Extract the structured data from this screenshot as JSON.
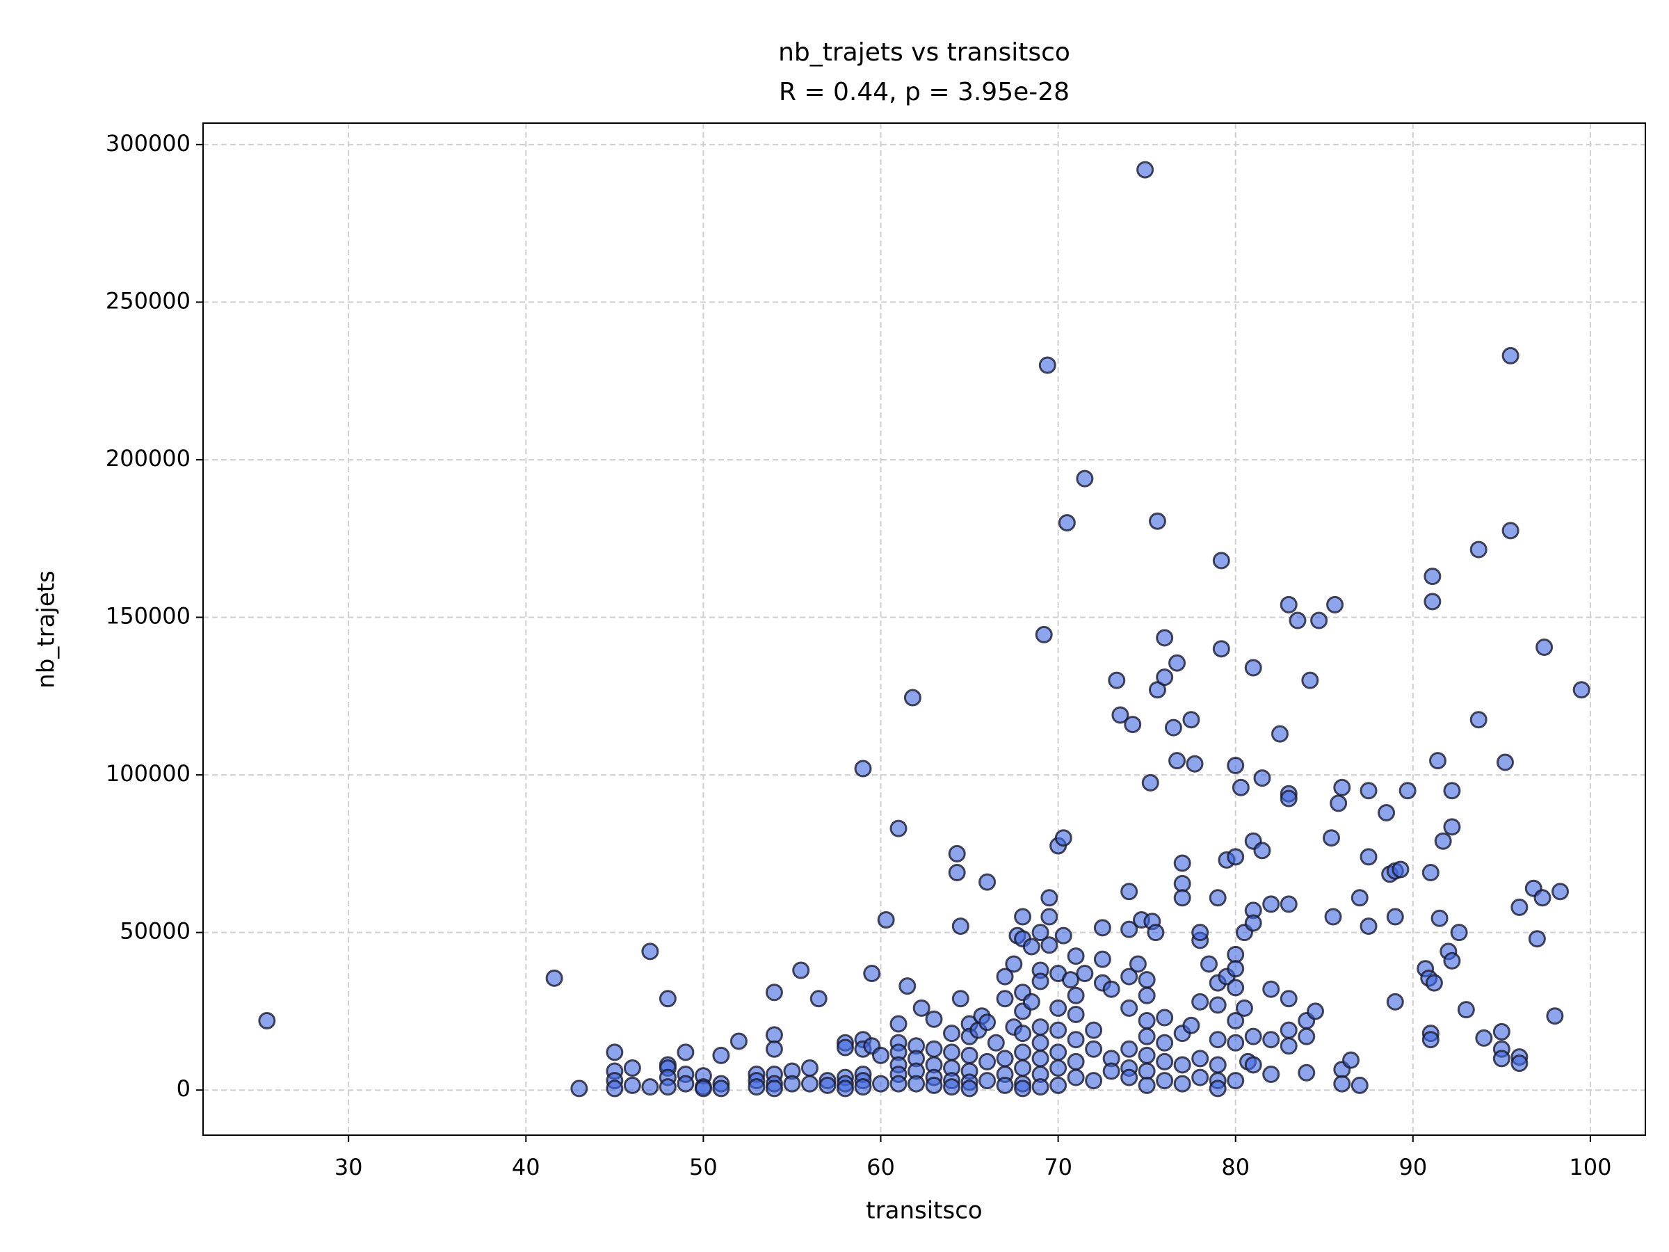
{
  "chart_data": {
    "type": "scatter",
    "title": "nb_trajets vs transitsco",
    "subtitle": "R = 0.44, p = 3.95e-28",
    "x_label": "transitsco",
    "y_label": "nb_trajets",
    "color": "#4169e1",
    "edge_color": "#1a1a2e",
    "grid": true,
    "xlim": [
      21.8,
      103.1
    ],
    "ylim": [
      -14300,
      306800
    ],
    "xticks": [
      30,
      40,
      50,
      60,
      70,
      80,
      90,
      100
    ],
    "yticks": [
      0,
      50000,
      100000,
      150000,
      200000,
      250000,
      300000
    ],
    "x": [
      25.4,
      41.6,
      43,
      47,
      48,
      45,
      45,
      45,
      45,
      46,
      46,
      47,
      48,
      48,
      48,
      48,
      49,
      49,
      49,
      50,
      50,
      50,
      51,
      51,
      51,
      52,
      53,
      53,
      53,
      54,
      54,
      54,
      54,
      54,
      54,
      55,
      55,
      55.5,
      56,
      56,
      56.5,
      57,
      57,
      58,
      58,
      58,
      58,
      58,
      59,
      59,
      59,
      59,
      59,
      59,
      59.5,
      59.5,
      60,
      60,
      60.3,
      61,
      61,
      61,
      61,
      61,
      61,
      61,
      61.5,
      61.8,
      62,
      62,
      62,
      62,
      62.3,
      63,
      63,
      63,
      63,
      63,
      64,
      64,
      64,
      64,
      64,
      64.3,
      64.3,
      64.5,
      64.5,
      65,
      65,
      65,
      65,
      65,
      65,
      65.5,
      65.7,
      66,
      66,
      66,
      66,
      66.5,
      67,
      67,
      67,
      67,
      67,
      67.5,
      67.5,
      67.7,
      68,
      68,
      68,
      68,
      68,
      68,
      68,
      68,
      68,
      68.5,
      68.5,
      69,
      69,
      69,
      69,
      69,
      69,
      69,
      69,
      69.2,
      69.4,
      69.5,
      69.5,
      69.5,
      70,
      70,
      70,
      70,
      70,
      70,
      70,
      70.3,
      70.3,
      70.5,
      70.7,
      71,
      71,
      71,
      71,
      71,
      71,
      71.5,
      71.5,
      72,
      72,
      72,
      72.5,
      72.5,
      72.5,
      73,
      73,
      73,
      73.3,
      73.5,
      74,
      74,
      74,
      74,
      74,
      74,
      74,
      74.2,
      74.5,
      74.7,
      74.9,
      75,
      75,
      75,
      75,
      75,
      75,
      75,
      75.2,
      75.3,
      75.5,
      75.6,
      75.6,
      76,
      76,
      76,
      76,
      76,
      76,
      76.5,
      76.7,
      76.7,
      77,
      77,
      77,
      77,
      77,
      77,
      77.5,
      77.7,
      77.5,
      78,
      78,
      78,
      78,
      78,
      78.5,
      79,
      79,
      79,
      79,
      79,
      79,
      79,
      79.2,
      79.2,
      79.5,
      79.5,
      80,
      80,
      80,
      80,
      80,
      80,
      80,
      80,
      80.3,
      80.5,
      80.5,
      80.7,
      81,
      81,
      81,
      81,
      81,
      81,
      81.5,
      81.5,
      82,
      82,
      82,
      82,
      82.5,
      83,
      83,
      83,
      83,
      83,
      83,
      83,
      83.5,
      84,
      84,
      84,
      84.2,
      84.5,
      84.7,
      85.4,
      85.5,
      85.6,
      86,
      85.8,
      86,
      86,
      86.5,
      87,
      87,
      87.5,
      87.5,
      87.5,
      88.5,
      88.7,
      89,
      89,
      89,
      89.3,
      89.7,
      90.7,
      90.9,
      91,
      91,
      91,
      91.1,
      91.1,
      91.2,
      91.4,
      91.5,
      91.7,
      92,
      92.2,
      92.2,
      92.2,
      92.6,
      93,
      93.7,
      93.7,
      94,
      95,
      95,
      95,
      95.2,
      95.5,
      95.5,
      96,
      96,
      96,
      96.8,
      97,
      97.3,
      97.4,
      98,
      98.3,
      99.5
    ],
    "values": [
      22000,
      35500,
      500,
      44000,
      29000,
      12000,
      6000,
      3000,
      500,
      7000,
      1500,
      1000,
      8000,
      7000,
      4000,
      1000,
      12000,
      5000,
      2000,
      4500,
      1000,
      500,
      2000,
      500,
      11000,
      15500,
      5000,
      3000,
      1000,
      31000,
      17500,
      13000,
      5000,
      2000,
      500,
      6000,
      2000,
      38000,
      7000,
      2000,
      29000,
      3000,
      1500,
      15000,
      13500,
      4000,
      2000,
      500,
      102000,
      16000,
      13000,
      5000,
      3000,
      1000,
      37000,
      14000,
      11000,
      2000,
      54000,
      83000,
      21000,
      15000,
      12000,
      8000,
      5000,
      2000,
      33000,
      124500,
      14000,
      10000,
      6000,
      2000,
      26000,
      22500,
      13000,
      8000,
      4000,
      1500,
      18000,
      12000,
      7000,
      3000,
      1000,
      75000,
      69000,
      52000,
      29000,
      21000,
      17000,
      11000,
      6000,
      2500,
      500,
      19000,
      23500,
      66000,
      9000,
      3000,
      21500,
      15000,
      36000,
      29000,
      10000,
      5000,
      1500,
      40000,
      20000,
      49000,
      55000,
      48000,
      31000,
      25000,
      18000,
      12000,
      7000,
      2000,
      500,
      45500,
      28000,
      50000,
      38000,
      34500,
      20000,
      15000,
      10000,
      5000,
      1000,
      144500,
      230000,
      61000,
      55000,
      46000,
      77500,
      37000,
      26000,
      19000,
      12000,
      7000,
      1500,
      80000,
      49000,
      180000,
      35000,
      42500,
      30000,
      24000,
      16000,
      9000,
      4000,
      194000,
      37000,
      13000,
      3000,
      19000,
      51500,
      41500,
      34000,
      32000,
      10000,
      6000,
      130000,
      119000,
      63000,
      51000,
      36000,
      26000,
      13000,
      7000,
      4000,
      116000,
      40000,
      54000,
      292000,
      35000,
      30000,
      22000,
      17000,
      11000,
      6000,
      1500,
      97500,
      53500,
      50000,
      127000,
      180500,
      143500,
      131000,
      23000,
      15000,
      9000,
      3000,
      115000,
      104500,
      135500,
      72000,
      65500,
      61000,
      18000,
      8000,
      2000,
      117500,
      103500,
      20500,
      47500,
      50000,
      28000,
      10000,
      4000,
      40000,
      61000,
      34000,
      27000,
      16000,
      8000,
      3000,
      500,
      168000,
      140000,
      36000,
      73000,
      74000,
      103000,
      43000,
      38500,
      32500,
      22000,
      15000,
      3000,
      96000,
      50000,
      26000,
      9000,
      134000,
      79000,
      57000,
      53000,
      17000,
      8000,
      99000,
      76000,
      59000,
      32000,
      16000,
      5000,
      113000,
      154000,
      94000,
      92500,
      59000,
      29000,
      19000,
      14000,
      149000,
      22000,
      17000,
      5500,
      130000,
      25000,
      149000,
      80000,
      55000,
      154000,
      96000,
      91000,
      6500,
      2000,
      9500,
      61000,
      1500,
      95000,
      74000,
      52000,
      88000,
      68500,
      69500,
      55000,
      28000,
      70000,
      95000,
      38500,
      35500,
      69000,
      18000,
      16000,
      163000,
      155000,
      34000,
      104500,
      54500,
      79000,
      44000,
      95000,
      83500,
      41000,
      50000,
      25500,
      171500,
      117500,
      16500,
      18500,
      13000,
      10000,
      104000,
      177500,
      233000,
      58000,
      10500,
      8500,
      64000,
      48000,
      61000,
      140500,
      23500,
      63000,
      127000
    ]
  }
}
